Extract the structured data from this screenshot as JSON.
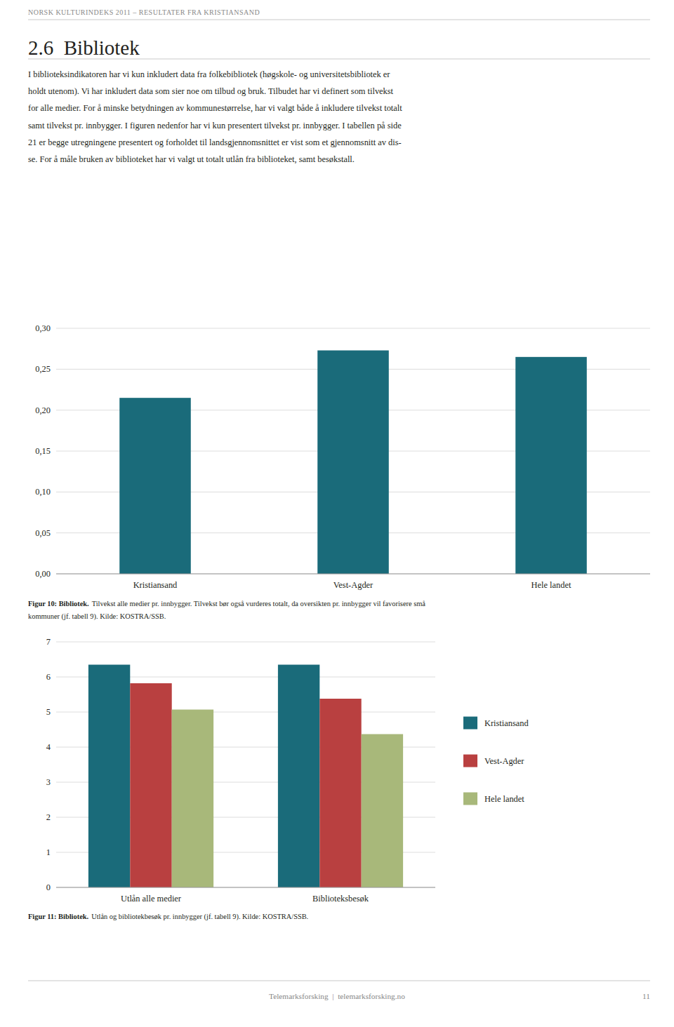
{
  "page_header": "NORSK KULTURINDEKS 2011 – RESULTATER FRA KRISTIANSAND",
  "section_title": "2.6  Bibliotek",
  "body_text_lines": [
    "I biblioteksindikatoren har vi kun inkludert data fra folkebibliotek (høgskole- og universitetsbibliotek er",
    "holdt utenom). Vi har inkludert data som sier noe om tilbud og bruk. Tilbudet har vi definert som tilvekst",
    "for alle medier. For å minske betydningen av kommunestørrelse, har vi valgt både å inkludere tilvekst totalt",
    "samt tilvekst pr. innbygger. I figuren nedenfor har vi kun presentert tilvekst pr. innbygger. I tabellen på side",
    "21 er begge utregningene presentert og forholdet til landsgjennomsnittet er vist som et gjennomsnitt av dis-",
    "se. For å måle bruken av biblioteket har vi valgt ut totalt utlån fra biblioteket, samt besøkstall."
  ],
  "footer_text": "Telemarksforsking  |  telemarksforsking.no",
  "footer_page": "11",
  "chart_data": [
    {
      "type": "bar",
      "categories": [
        "Kristiansand",
        "Vest-Agder",
        "Hele landet"
      ],
      "values": [
        0.215,
        0.273,
        0.265
      ],
      "color": "#1a6b7a",
      "ylim": [
        0,
        0.3
      ],
      "yticks": [
        {
          "value": 0.0,
          "label": "0,00"
        },
        {
          "value": 0.05,
          "label": "0,05"
        },
        {
          "value": 0.1,
          "label": "0,10"
        },
        {
          "value": 0.15,
          "label": "0,15"
        },
        {
          "value": 0.2,
          "label": "0,20"
        },
        {
          "value": 0.25,
          "label": "0,25"
        },
        {
          "value": 0.3,
          "label": "0,30"
        }
      ],
      "grid": true,
      "caption_bold": "Figur 10: Bibliotek.",
      "caption": [
        "Tilvekst alle medier pr. innbygger. Tilvekst bør også vurderes totalt, da oversikten pr. innbygger vil favorisere små",
        "kommuner (jf. tabell 9). Kilde: KOSTRA/SSB."
      ]
    },
    {
      "type": "bar",
      "categories": [
        "Utlån alle medier",
        "Biblioteksbesøk"
      ],
      "series": [
        {
          "name": "Kristiansand",
          "color": "#1a6b7a",
          "values": [
            6.35,
            6.35
          ]
        },
        {
          "name": "Vest-Agder",
          "color": "#b94040",
          "values": [
            5.82,
            5.38
          ]
        },
        {
          "name": "Hele landet",
          "color": "#a8b87a",
          "values": [
            5.07,
            4.37
          ]
        }
      ],
      "ylim": [
        0,
        7
      ],
      "yticks": [
        0,
        1,
        2,
        3,
        4,
        5,
        6,
        7
      ],
      "grid": true,
      "legend": "right",
      "caption_bold": "Figur 11: Bibliotek.",
      "caption": [
        "Utlån og bibliotekbesøk pr. innbygger (jf. tabell 9). Kilde: KOSTRA/SSB."
      ]
    }
  ]
}
